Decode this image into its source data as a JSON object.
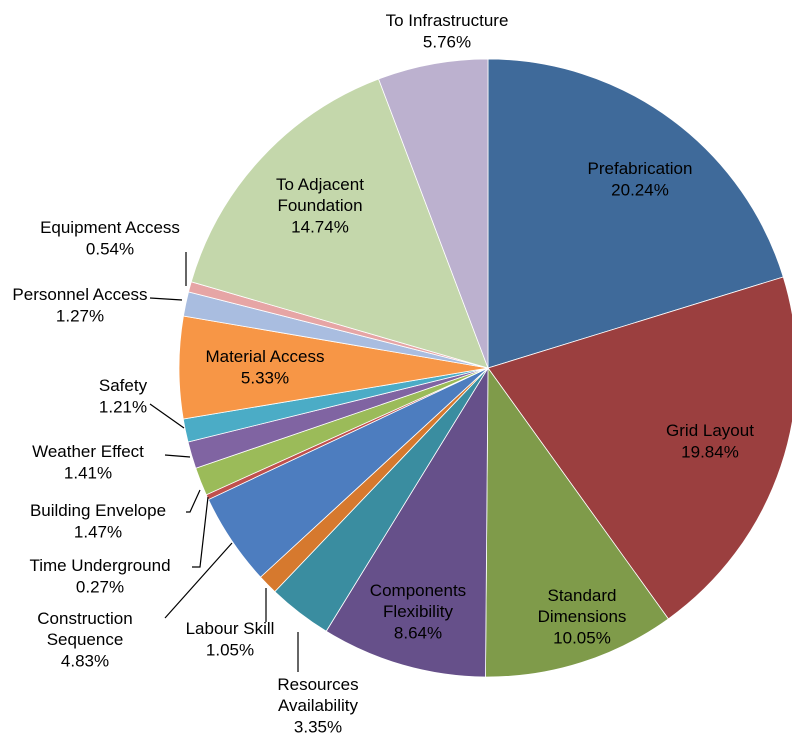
{
  "chart_data": {
    "type": "pie",
    "categories": [
      "Prefabrication",
      "Grid Layout",
      "Standard Dimensions",
      "Components Flexibility",
      "Resources Availability",
      "Labour Skill",
      "Construction Sequence",
      "Time Underground",
      "Building Envelope",
      "Weather Effect",
      "Safety",
      "Material Access",
      "Personnel Access",
      "Equipment Access",
      "To Adjacent Foundation",
      "To Infrastructure"
    ],
    "values": [
      20.24,
      19.84,
      10.05,
      8.64,
      3.35,
      1.05,
      4.83,
      0.27,
      1.47,
      1.41,
      1.21,
      5.33,
      1.27,
      0.54,
      14.74,
      5.76
    ],
    "value_labels": [
      "20.24%",
      "19.84%",
      "10.05%",
      "8.64%",
      "3.35%",
      "1.05%",
      "4.83%",
      "0.27%",
      "1.47%",
      "1.41%",
      "1.21%",
      "5.33%",
      "1.27%",
      "0.54%",
      "14.74%",
      "5.76%"
    ],
    "colors": [
      "#3f6a9a",
      "#9b3f3f",
      "#7f9b4a",
      "#66508a",
      "#3a8da0",
      "#d6792e",
      "#4d7dbf",
      "#c0504d",
      "#9bbb59",
      "#8064a2",
      "#4bacc6",
      "#f79646",
      "#a9bde0",
      "#e6a5a5",
      "#c4d7ab",
      "#bcb1cf"
    ]
  }
}
